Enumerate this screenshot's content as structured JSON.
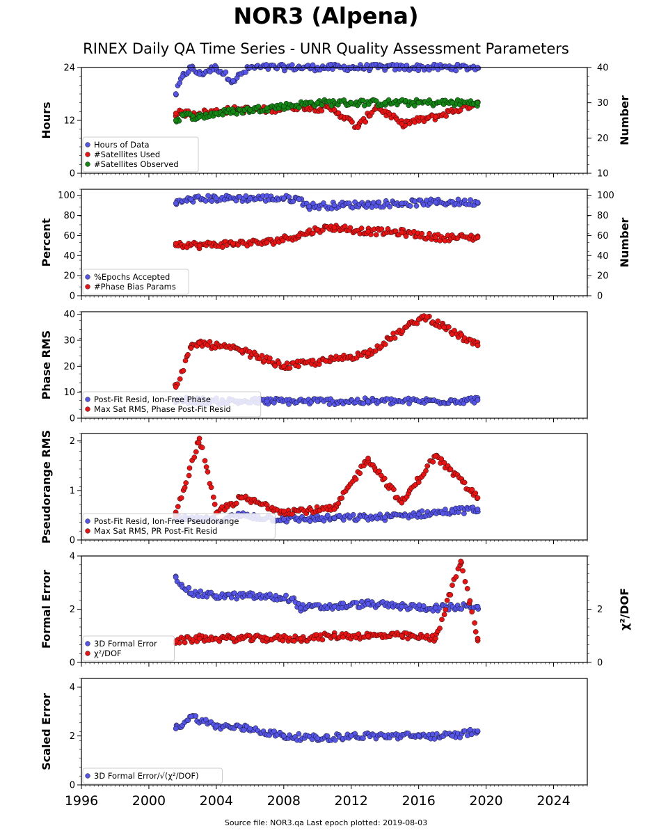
{
  "title": "NOR3 (Alpena)",
  "subtitle": "RINEX Daily QA Time Series - UNR Quality Assessment Parameters",
  "footer": "Source file: NOR3.qa Last epoch plotted: 2019-08-03",
  "colors": {
    "blue": "#5555ee",
    "red": "#ee1111",
    "green": "#118811"
  },
  "chart_data": [
    {
      "type": "scatter",
      "xlim": [
        1996,
        2026
      ],
      "x_ticks": [
        "1996",
        "2000",
        "2004",
        "2008",
        "2012",
        "2016",
        "2020",
        "2024"
      ],
      "ylabel": "Hours",
      "ylim": [
        0,
        24
      ],
      "y_ticks": [
        "0",
        "12",
        "24"
      ],
      "y2label": "Number",
      "y2lim": [
        10,
        40
      ],
      "y2_ticks": [
        "10",
        "20",
        "30",
        "40"
      ],
      "legend": "lower-left",
      "series": [
        {
          "name": "Hours of Data",
          "axis": "left",
          "color": "blue",
          "x": [
            2001.6,
            2002.0,
            2002.5,
            2003.0,
            2004.0,
            2005.0,
            2006.0,
            2008.0,
            2010.0,
            2012.0,
            2014.0,
            2016.0,
            2018.0,
            2019.5
          ],
          "y": [
            18.0,
            22.0,
            24.0,
            22.5,
            24.0,
            21.0,
            24.0,
            24.0,
            24.0,
            24.0,
            24.0,
            24.0,
            24.0,
            24.0
          ]
        },
        {
          "name": "#Satellites Used",
          "axis": "right",
          "color": "red",
          "x": [
            2001.6,
            2003.0,
            2005.0,
            2007.0,
            2009.0,
            2011.0,
            2012.4,
            2013.5,
            2015.0,
            2017.0,
            2019.5
          ],
          "y": [
            27.0,
            27.0,
            28.0,
            28.0,
            29.0,
            28.0,
            23.0,
            29.0,
            24.0,
            26.0,
            30.0
          ]
        },
        {
          "name": "#Satellites Observed",
          "axis": "right",
          "color": "green",
          "x": [
            2001.6,
            2002.0,
            2003.0,
            2004.0,
            2005.0,
            2006.0,
            2007.0,
            2008.0,
            2010.0,
            2012.0,
            2014.0,
            2016.0,
            2018.0,
            2019.5
          ],
          "y": [
            25.0,
            26.5,
            26.0,
            27.0,
            27.5,
            28.0,
            28.5,
            29.0,
            30.0,
            30.0,
            30.0,
            30.0,
            30.0,
            30.0
          ]
        }
      ]
    },
    {
      "type": "scatter",
      "xlim": [
        1996,
        2026
      ],
      "x_ticks": [
        "1996",
        "2000",
        "2004",
        "2008",
        "2012",
        "2016",
        "2020",
        "2024"
      ],
      "ylabel": "Percent",
      "ylim": [
        0,
        106
      ],
      "y_ticks": [
        "0",
        "20",
        "40",
        "60",
        "80",
        "100"
      ],
      "y2label": "Number",
      "y2lim": [
        0,
        106
      ],
      "y2_ticks": [
        "0",
        "20",
        "40",
        "60",
        "80",
        "100"
      ],
      "legend": "lower-left",
      "series": [
        {
          "name": "%Epochs Accepted",
          "axis": "left",
          "color": "blue",
          "x": [
            2001.6,
            2002.5,
            2004.0,
            2006.0,
            2008.0,
            2008.9,
            2009.5,
            2011.0,
            2013.0,
            2015.0,
            2017.0,
            2019.5
          ],
          "y": [
            92,
            96,
            97,
            97,
            97,
            96,
            89,
            90,
            91,
            92,
            93,
            93
          ]
        },
        {
          "name": "#Phase Bias Params",
          "axis": "right",
          "color": "red",
          "x": [
            2001.6,
            2003.0,
            2005.0,
            2007.0,
            2008.9,
            2010.0,
            2011.0,
            2013.0,
            2015.0,
            2017.0,
            2019.5
          ],
          "y": [
            52,
            50,
            52,
            53,
            60,
            66,
            68,
            64,
            63,
            58,
            58
          ]
        }
      ]
    },
    {
      "type": "scatter",
      "xlim": [
        1996,
        2026
      ],
      "x_ticks": [
        "1996",
        "2000",
        "2004",
        "2008",
        "2012",
        "2016",
        "2020",
        "2024"
      ],
      "ylabel": "Phase RMS",
      "ylim": [
        0,
        41
      ],
      "y_ticks": [
        "0",
        "10",
        "20",
        "30",
        "40"
      ],
      "legend": "lower-left",
      "series": [
        {
          "name": "Post-Fit Resid, Ion-Free Phase",
          "color": "blue",
          "x": [
            2001.6,
            2004.0,
            2007.0,
            2010.0,
            2013.0,
            2016.0,
            2019.5
          ],
          "y": [
            7,
            6.5,
            6.5,
            6.5,
            6.5,
            6.5,
            7
          ]
        },
        {
          "name": "Max Sat RMS, Phase Post-Fit Resid",
          "color": "red",
          "x": [
            2001.6,
            2002.5,
            2003.0,
            2005.5,
            2008.0,
            2010.5,
            2013.0,
            2016.0,
            2016.5,
            2017.5,
            2019.5
          ],
          "y": [
            12,
            27,
            29,
            26,
            20,
            22,
            25,
            38,
            39,
            35,
            28
          ]
        }
      ]
    },
    {
      "type": "scatter",
      "xlim": [
        1996,
        2026
      ],
      "x_ticks": [
        "1996",
        "2000",
        "2004",
        "2008",
        "2012",
        "2016",
        "2020",
        "2024"
      ],
      "ylabel": "Pseudorange RMS",
      "ylim": [
        0,
        2.15
      ],
      "y_ticks": [
        "0",
        "1",
        "2"
      ],
      "legend": "lower-left",
      "series": [
        {
          "name": "Post-Fit Resid, Ion-Free Pseudorange",
          "color": "blue",
          "x": [
            2001.6,
            2004.0,
            2005.5,
            2008.0,
            2011.0,
            2014.0,
            2016.0,
            2018.0,
            2019.5
          ],
          "y": [
            0.42,
            0.4,
            0.5,
            0.42,
            0.44,
            0.46,
            0.52,
            0.58,
            0.62
          ]
        },
        {
          "name": "Max Sat RMS, PR Post-Fit Resid",
          "color": "red",
          "x": [
            2001.6,
            2003.0,
            2004.0,
            2005.5,
            2008.0,
            2011.0,
            2013.0,
            2015.0,
            2017.0,
            2019.5
          ],
          "y": [
            0.5,
            2.05,
            0.55,
            0.85,
            0.58,
            0.62,
            1.65,
            0.75,
            1.7,
            0.85
          ]
        }
      ]
    },
    {
      "type": "scatter",
      "xlim": [
        1996,
        2026
      ],
      "x_ticks": [
        "1996",
        "2000",
        "2004",
        "2008",
        "2012",
        "2016",
        "2020",
        "2024"
      ],
      "ylabel": "Formal Error",
      "ylim": [
        0,
        4
      ],
      "y_ticks": [
        "0",
        "2",
        "4"
      ],
      "y2label": "χ²/DOF",
      "y2lim": [
        0,
        4
      ],
      "y2_ticks": [
        "0",
        "2"
      ],
      "legend": "lower-left",
      "series": [
        {
          "name": "3D Formal Error",
          "color": "blue",
          "x": [
            2001.6,
            2002.5,
            2004.0,
            2006.0,
            2008.5,
            2009.0,
            2011.0,
            2013.0,
            2015.0,
            2017.0,
            2019.5
          ],
          "y": [
            3.2,
            2.6,
            2.5,
            2.5,
            2.4,
            2.05,
            2.1,
            2.2,
            2.1,
            2.05,
            2.1
          ]
        },
        {
          "name": "χ²/DOF",
          "color": "red",
          "x": [
            2001.6,
            2003.0,
            2005.0,
            2007.0,
            2009.0,
            2011.0,
            2013.0,
            2015.0,
            2017.0,
            2018.5,
            2019.5
          ],
          "y": [
            0.8,
            0.9,
            0.9,
            0.9,
            0.9,
            1.0,
            1.0,
            1.0,
            0.9,
            3.8,
            0.9
          ]
        }
      ]
    },
    {
      "type": "scatter",
      "xlim": [
        1996,
        2026
      ],
      "x_ticks": [
        "1996",
        "2000",
        "2004",
        "2008",
        "2012",
        "2016",
        "2020",
        "2024"
      ],
      "ylabel": "Scaled Error",
      "ylim": [
        0,
        4.35
      ],
      "y_ticks": [
        "0",
        "2",
        "4"
      ],
      "legend": "lower-left",
      "series": [
        {
          "name": "3D Formal Error/√(χ²/DOF)",
          "color": "blue",
          "x": [
            2001.6,
            2002.5,
            2004.0,
            2006.0,
            2008.0,
            2010.0,
            2012.0,
            2014.0,
            2016.0,
            2018.0,
            2019.5
          ],
          "y": [
            2.3,
            2.8,
            2.4,
            2.3,
            2.0,
            1.9,
            2.0,
            2.0,
            2.0,
            2.0,
            2.2
          ]
        }
      ]
    }
  ]
}
